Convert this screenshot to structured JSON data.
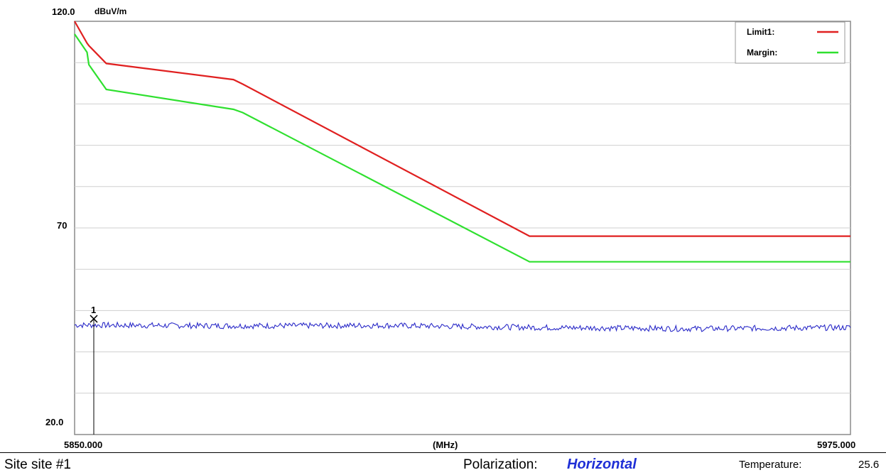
{
  "chart_data": {
    "type": "line",
    "y_unit_label": "dBuV/m",
    "x_unit_label": "(MHz)",
    "y_tick_labels": [
      "120.0",
      "70",
      "20.0"
    ],
    "x_tick_labels": [
      "5850.000",
      "5975.000"
    ],
    "xlim": [
      5850,
      5975
    ],
    "ylim": [
      20,
      120
    ],
    "grid": true,
    "legend_position": "top-right",
    "series": [
      {
        "name": "Limit1:",
        "color": "#e02020",
        "x": [
          5850.0,
          5852.0,
          5852.3,
          5855.1,
          5875.6,
          5877.1,
          5923.3,
          5975.0
        ],
        "y": [
          120.0,
          114.7,
          114.1,
          109.8,
          105.9,
          104.8,
          68.0,
          68.0
        ]
      },
      {
        "name": "Margin:",
        "color": "#2fe02f",
        "x": [
          5850.0,
          5852.0,
          5852.3,
          5855.1,
          5875.6,
          5877.1,
          5923.3,
          5975.0
        ],
        "y": [
          116.9,
          112.5,
          109.5,
          103.5,
          98.7,
          97.9,
          61.8,
          61.8
        ]
      },
      {
        "name": "",
        "color": "#2a2ac8",
        "x": [
          5850,
          5875,
          5900,
          5925,
          5950,
          5975
        ],
        "y": [
          46.5,
          46.3,
          46.4,
          45.9,
          45.6,
          45.9
        ]
      }
    ],
    "markers": [
      {
        "label": "1",
        "x": 5850.0,
        "y": 48.0
      }
    ]
  },
  "footer": {
    "site": "Site  site #1",
    "polarization_label": "Polarization:",
    "polarization_value": "Horizontal",
    "temperature_label": "Temperature:",
    "temperature_value": "25.6"
  }
}
